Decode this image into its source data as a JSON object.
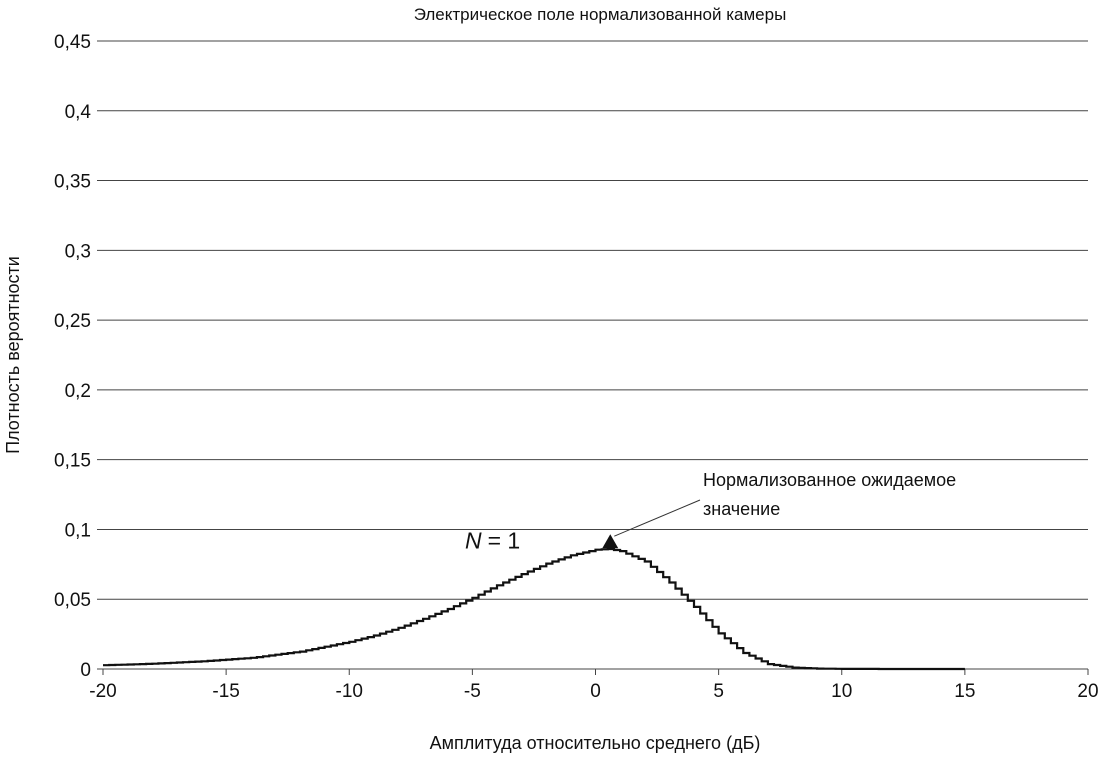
{
  "chart_data": {
    "type": "line",
    "title": "Электрическое поле нормализованной камеры",
    "xlabel": "Амплитуда относительно среднего (дБ)",
    "ylabel": "Плотность вероятности",
    "xlim": [
      -20,
      20
    ],
    "ylim": [
      0,
      0.45
    ],
    "x_ticks": [
      -20,
      -15,
      -10,
      -5,
      0,
      5,
      10,
      15,
      20
    ],
    "x_tick_labels": [
      "-20",
      "-15",
      "-10",
      "-5",
      "0",
      "5",
      "10",
      "15",
      "20"
    ],
    "y_ticks": [
      0,
      0.05,
      0.1,
      0.15,
      0.2,
      0.25,
      0.3,
      0.35,
      0.4,
      0.45
    ],
    "y_tick_labels": [
      "0",
      "0,05",
      "0,1",
      "0,15",
      "0,2",
      "0,25",
      "0,3",
      "0,35",
      "0,4",
      "0,45"
    ],
    "grid": "horizontal",
    "series": [
      {
        "name": "",
        "line_label": "N",
        "line_label_value": "= 1",
        "x": [
          -20,
          -18,
          -16,
          -14,
          -12,
          -10,
          -9,
          -8,
          -7,
          -6,
          -5,
          -4,
          -3,
          -2,
          -1,
          0,
          0.5,
          1,
          2,
          3,
          4,
          5,
          6,
          7,
          8,
          9,
          10,
          12,
          15
        ],
        "y": [
          0.0027,
          0.0038,
          0.0055,
          0.008,
          0.0125,
          0.0195,
          0.024,
          0.0295,
          0.036,
          0.043,
          0.051,
          0.06,
          0.068,
          0.0755,
          0.0815,
          0.0855,
          0.086,
          0.0845,
          0.077,
          0.062,
          0.0445,
          0.0255,
          0.0115,
          0.0035,
          0.001,
          0.0003,
          0.0001,
          0,
          0
        ]
      }
    ],
    "annotations": [
      {
        "line1": "Нормализованное ожидаемое",
        "line2": "значение",
        "x": 0.6,
        "y": 0.088
      }
    ],
    "colors": {
      "line": "#111111",
      "grid": "#444444",
      "background": "#ffffff"
    }
  }
}
